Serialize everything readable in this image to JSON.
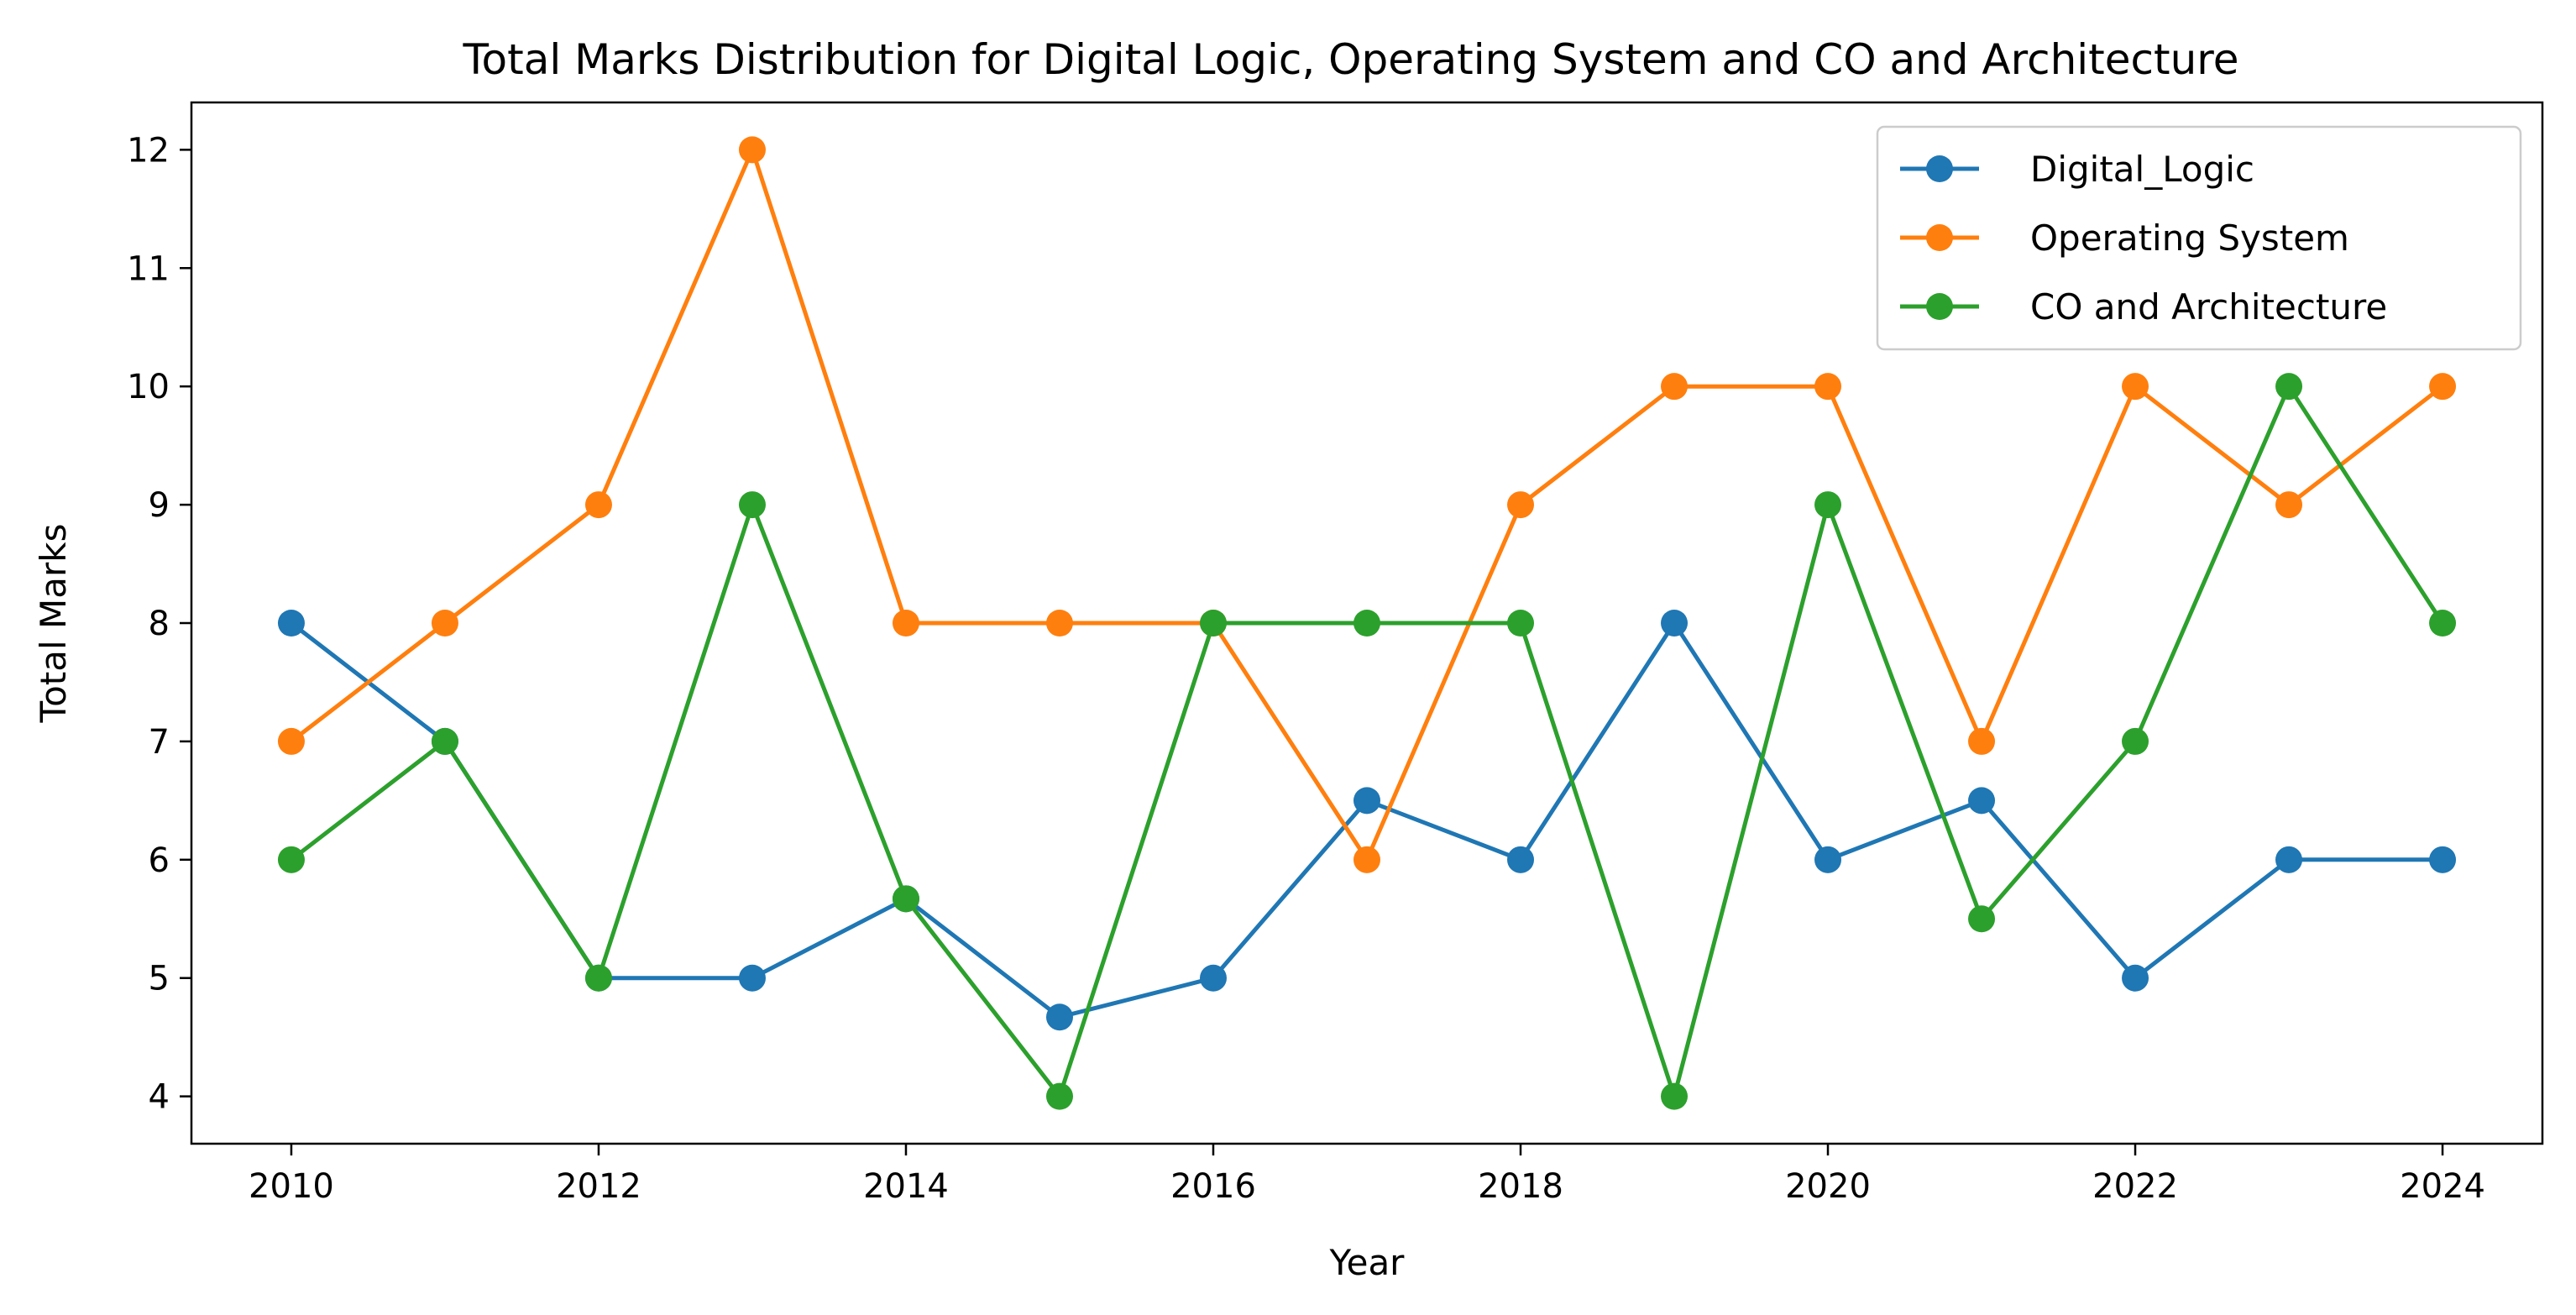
{
  "chart_data": {
    "type": "line",
    "title": "Total Marks Distribution for Digital Logic, Operating System and CO and Architecture",
    "xlabel": "Year",
    "ylabel": "Total Marks",
    "x": [
      2010,
      2011,
      2012,
      2013,
      2014,
      2015,
      2016,
      2017,
      2018,
      2019,
      2020,
      2021,
      2022,
      2023,
      2024
    ],
    "xlim": [
      2009.35,
      2024.65
    ],
    "ylim": [
      3.6,
      12.4
    ],
    "xticks": [
      2010,
      2012,
      2014,
      2016,
      2018,
      2020,
      2022,
      2024
    ],
    "yticks": [
      4,
      5,
      6,
      7,
      8,
      9,
      10,
      11,
      12
    ],
    "grid": false,
    "legend_position": "top-right",
    "series": [
      {
        "name": "Digital_Logic",
        "color": "#1f77b4",
        "values": [
          8,
          7,
          5,
          5,
          5.67,
          4.67,
          5,
          6.5,
          6,
          8,
          6,
          6.5,
          5,
          6,
          6
        ]
      },
      {
        "name": "Operating System",
        "color": "#ff7f0e",
        "values": [
          7,
          8,
          9,
          12,
          8,
          8,
          8,
          6,
          9,
          10,
          10,
          7,
          10,
          9,
          10
        ]
      },
      {
        "name": "CO and Architecture",
        "color": "#2ca02c",
        "values": [
          6,
          7,
          5,
          9,
          5.67,
          4,
          8,
          8,
          8,
          4,
          9,
          5.5,
          7,
          10,
          8
        ]
      }
    ]
  }
}
